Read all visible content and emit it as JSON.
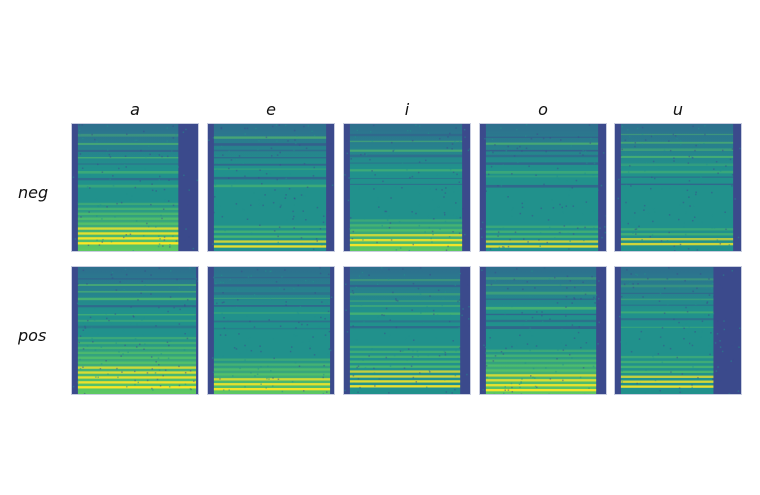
{
  "figure": {
    "columns": [
      "a",
      "e",
      "i",
      "o",
      "u"
    ],
    "rows": [
      "neg",
      "pos"
    ],
    "colormap": [
      "#3b4a8c",
      "#2e6f8e",
      "#21918c",
      "#5ec962",
      "#fde725"
    ]
  }
}
